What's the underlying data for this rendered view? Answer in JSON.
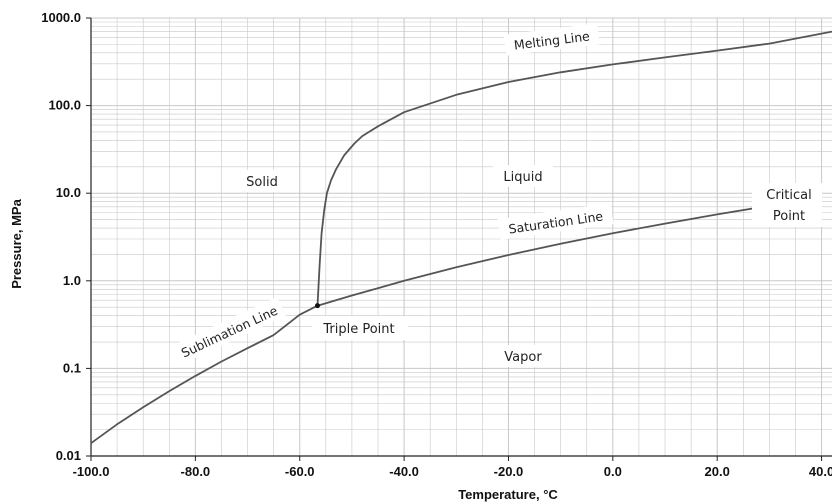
{
  "chart_data": {
    "type": "line",
    "xlabel": "Temperature, °C",
    "ylabel": "Pressure, MPa",
    "xlim": [
      -100,
      42
    ],
    "ylim": [
      0.01,
      1000
    ],
    "y_scale": "log",
    "grid": true,
    "x_ticks": [
      -100,
      -80,
      -60,
      -40,
      -20,
      0,
      20,
      40
    ],
    "x_tick_labels": [
      "-100.0",
      "-80.0",
      "-60.0",
      "-40.0",
      "-20.0",
      "0.0",
      "20.0",
      "40.0"
    ],
    "y_ticks": [
      0.01,
      0.1,
      1,
      10,
      100,
      1000
    ],
    "y_tick_labels": [
      "0.01",
      "0.1",
      "1.0",
      "10.0",
      "100.0",
      "1000.0"
    ],
    "colors": {
      "curve": "#555555",
      "grid": "#c8c8c8",
      "axis": "#222222"
    },
    "series": [
      {
        "name": "Sublimation Line",
        "x": [
          -100,
          -95,
          -90,
          -85,
          -80,
          -75,
          -70,
          -65,
          -60,
          -56.6
        ],
        "y": [
          0.014,
          0.023,
          0.036,
          0.055,
          0.082,
          0.12,
          0.17,
          0.24,
          0.41,
          0.52
        ]
      },
      {
        "name": "Saturation Line",
        "x": [
          -56.6,
          -50,
          -40,
          -30,
          -20,
          -10,
          0,
          10,
          20,
          31.1
        ],
        "y": [
          0.52,
          0.68,
          1.0,
          1.43,
          1.97,
          2.65,
          3.49,
          4.5,
          5.73,
          7.38
        ]
      },
      {
        "name": "Melting Line",
        "x": [
          -56.6,
          -56.2,
          -55.8,
          -55.3,
          -54.8,
          -54,
          -53,
          -51.5,
          -49.5,
          -48,
          -45,
          -40,
          -30,
          -20,
          -10,
          0,
          10,
          20,
          30,
          42
        ],
        "y": [
          0.52,
          1.5,
          3.5,
          6.5,
          10,
          14,
          19,
          27,
          37,
          45,
          58,
          84,
          133,
          186,
          240,
          295,
          355,
          425,
          510,
          700
        ]
      }
    ],
    "points": [
      {
        "name": "Triple Point",
        "x": -56.6,
        "y": 0.52
      },
      {
        "name": "Critical Point",
        "x": 31.1,
        "y": 7.38
      }
    ],
    "annotations": {
      "solid": "Solid",
      "liquid": "Liquid",
      "vapor": "Vapor",
      "melting_line": "Melting Line",
      "saturation_line": "Saturation Line",
      "sublimation_line": "Sublimation Line",
      "triple_point": "Triple Point",
      "critical_point_line1": "Critical",
      "critical_point_line2": "Point"
    }
  }
}
